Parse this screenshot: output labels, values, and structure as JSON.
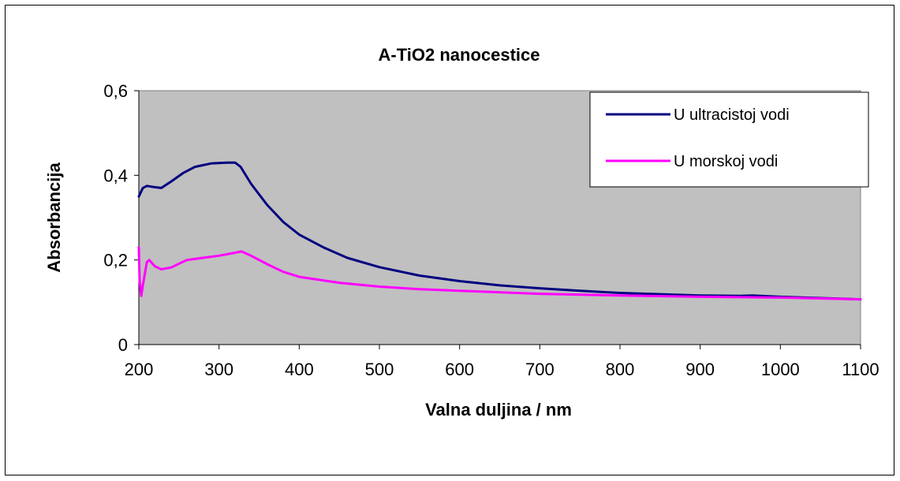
{
  "chart_data": {
    "type": "line",
    "title": "A-TiO2 nanocestice",
    "xlabel": "Valna duljina  / nm",
    "ylabel": "Absorbancija",
    "xlim": [
      200,
      1100
    ],
    "ylim": [
      0,
      0.6
    ],
    "x_ticks": [
      "200",
      "300",
      "400",
      "500",
      "600",
      "700",
      "800",
      "900",
      "1000",
      "1100"
    ],
    "y_ticks": [
      "0",
      "0,2",
      "0,4",
      "0,6"
    ],
    "grid": false,
    "plot_background": "#c0c0c0",
    "legend_position": "top-right",
    "series": [
      {
        "name": "U ultracistoj vodi",
        "color": "#000080",
        "x": [
          200,
          205,
          210,
          220,
          228,
          240,
          255,
          270,
          290,
          310,
          320,
          327,
          340,
          360,
          380,
          400,
          430,
          460,
          500,
          550,
          600,
          650,
          700,
          750,
          800,
          850,
          900,
          950,
          965,
          1000,
          1050,
          1100
        ],
        "y": [
          0.35,
          0.37,
          0.375,
          0.372,
          0.37,
          0.385,
          0.405,
          0.42,
          0.428,
          0.43,
          0.43,
          0.42,
          0.38,
          0.33,
          0.29,
          0.26,
          0.23,
          0.205,
          0.183,
          0.163,
          0.15,
          0.14,
          0.133,
          0.127,
          0.122,
          0.119,
          0.116,
          0.115,
          0.116,
          0.113,
          0.11,
          0.107
        ]
      },
      {
        "name": "U morskoj vodi",
        "color": "#ff00ff",
        "x": [
          200,
          201,
          203,
          205,
          210,
          213,
          220,
          228,
          240,
          260,
          280,
          300,
          320,
          328,
          340,
          360,
          380,
          400,
          450,
          500,
          550,
          600,
          700,
          800,
          900,
          1000,
          1100
        ],
        "y": [
          0.23,
          0.15,
          0.115,
          0.14,
          0.195,
          0.2,
          0.185,
          0.178,
          0.182,
          0.2,
          0.205,
          0.21,
          0.217,
          0.22,
          0.21,
          0.19,
          0.172,
          0.16,
          0.146,
          0.137,
          0.131,
          0.127,
          0.12,
          0.116,
          0.113,
          0.111,
          0.107
        ]
      }
    ]
  }
}
